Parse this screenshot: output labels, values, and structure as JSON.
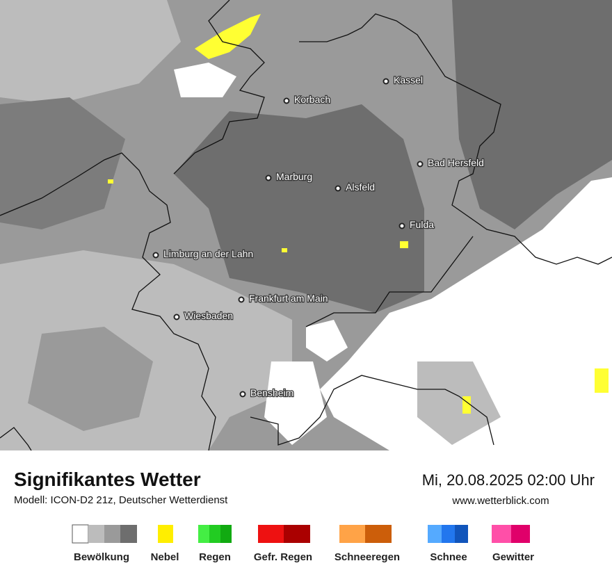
{
  "map": {
    "cities": [
      "Kassel",
      "Korbach",
      "Bad Hersfeld",
      "Marburg",
      "Alsfeld",
      "Fulda",
      "Limburg an der Lahn",
      "Frankfurt am Main",
      "Wiesbaden",
      "Bensheim"
    ]
  },
  "footer": {
    "title": "Signifikantes Wetter",
    "model": "Modell: ICON-D2 21z, Deutscher Wetterdienst",
    "datetime": "Mi, 20.08.2025 02:00 Uhr",
    "website": "www.wetterblick.com"
  },
  "legend": {
    "items": [
      "Bewölkung",
      "Nebel",
      "Regen",
      "Gefr. Regen",
      "Schneeregen",
      "Schnee",
      "Gewitter"
    ]
  }
}
